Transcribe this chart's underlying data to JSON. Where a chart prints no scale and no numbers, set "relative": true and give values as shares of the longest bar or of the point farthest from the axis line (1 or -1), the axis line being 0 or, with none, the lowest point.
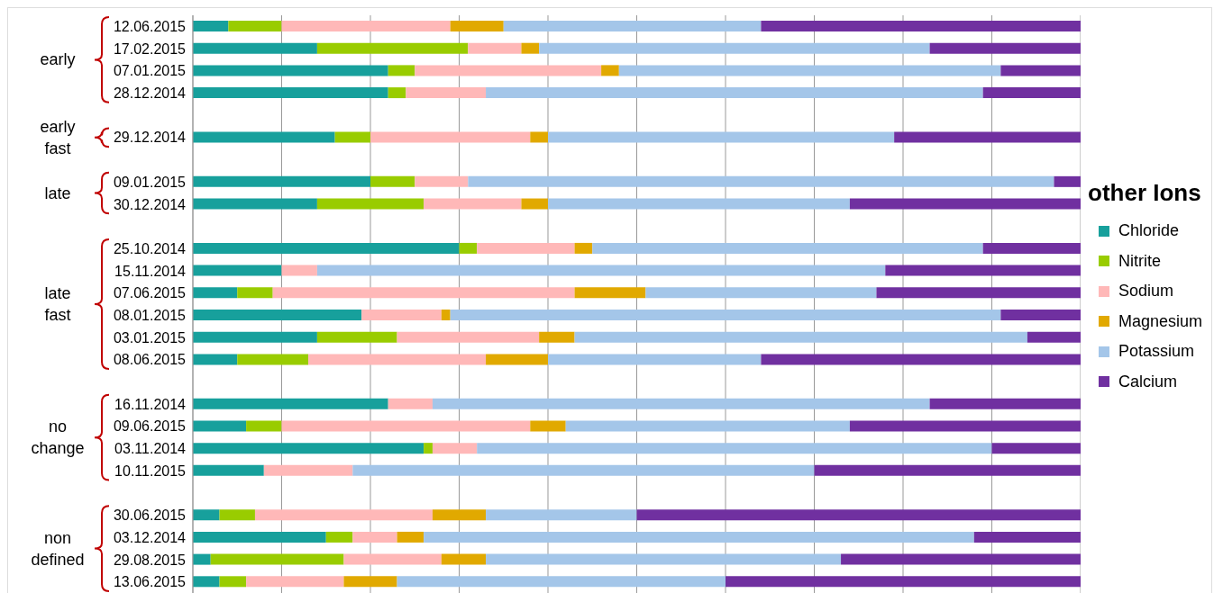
{
  "chart_data": {
    "type": "bar",
    "orientation": "horizontal",
    "stacked": true,
    "relative": true,
    "grid": "x",
    "legend": "right",
    "legend_title": "other Ions",
    "categories": [
      "12.06.2015",
      "17.02.2015",
      "07.01.2015",
      "28.12.2014",
      null,
      "29.12.2014",
      null,
      "09.01.2015",
      "30.12.2014",
      null,
      "25.10.2014",
      "15.11.2014",
      "07.06.2015",
      "08.01.2015",
      "03.01.2015",
      "08.06.2015",
      null,
      "16.11.2014",
      "09.06.2015",
      "03.11.2014",
      "10.11.2015",
      null,
      "30.06.2015",
      "03.12.2014",
      "29.08.2015",
      "13.06.2015"
    ],
    "annotations": [
      "early",
      "early fast",
      "late",
      "late fast",
      "no change",
      "non defined"
    ],
    "series": [
      {
        "name": "Chloride",
        "color": "#17a09c",
        "values": [
          0.04,
          0.14,
          0.22,
          0.22,
          null,
          0.16,
          null,
          0.2,
          0.14,
          null,
          0.3,
          0.1,
          0.05,
          0.19,
          0.14,
          0.05,
          null,
          0.22,
          0.06,
          0.26,
          0.08,
          null,
          0.03,
          0.15,
          0.02,
          0.03
        ]
      },
      {
        "name": "Nitrite",
        "color": "#99cc00",
        "values": [
          0.06,
          0.17,
          0.03,
          0.02,
          null,
          0.04,
          null,
          0.05,
          0.12,
          null,
          0.02,
          0,
          0.04,
          0,
          0.09,
          0.08,
          null,
          0,
          0.04,
          0.01,
          0,
          null,
          0.04,
          0.03,
          0.15,
          0.03
        ]
      },
      {
        "name": "Sodium",
        "color": "#ffb8b8",
        "values": [
          0.19,
          0.06,
          0.21,
          0.09,
          null,
          0.18,
          null,
          0.06,
          0.11,
          null,
          0.11,
          0.04,
          0.34,
          0.09,
          0.16,
          0.2,
          null,
          0.05,
          0.28,
          0.05,
          0.1,
          null,
          0.2,
          0.05,
          0.11,
          0.11
        ]
      },
      {
        "name": "Magnesium",
        "color": "#e1a900",
        "values": [
          0.06,
          0.02,
          0.02,
          0,
          null,
          0.02,
          null,
          0,
          0.03,
          null,
          0.02,
          0,
          0.08,
          0.01,
          0.04,
          0.07,
          null,
          0,
          0.04,
          0,
          0,
          null,
          0.06,
          0.03,
          0.05,
          0.06
        ]
      },
      {
        "name": "Potassium",
        "color": "#a4c6e9",
        "values": [
          0.29,
          0.44,
          0.43,
          0.56,
          null,
          0.39,
          null,
          0.66,
          0.34,
          null,
          0.44,
          0.64,
          0.26,
          0.62,
          0.51,
          0.24,
          null,
          0.56,
          0.32,
          0.58,
          0.52,
          null,
          0.17,
          0.62,
          0.4,
          0.37
        ]
      },
      {
        "name": "Calcium",
        "color": "#7030a0",
        "values": [
          0.36,
          0.17,
          0.09,
          0.11,
          null,
          0.21,
          null,
          0.03,
          0.26,
          null,
          0.11,
          0.22,
          0.23,
          0.09,
          0.06,
          0.36,
          null,
          0.17,
          0.26,
          0.1,
          0.3,
          null,
          0.5,
          0.12,
          0.27,
          0.4
        ]
      }
    ]
  }
}
